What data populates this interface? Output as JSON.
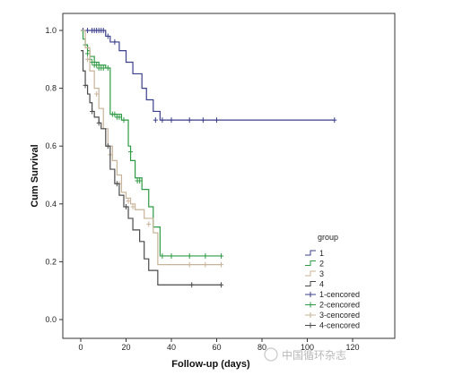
{
  "chart_data": {
    "type": "line",
    "subtype": "kaplan-meier",
    "xlabel": "Follow-up (days)",
    "ylabel": "Cum Survival",
    "xlim": [
      0,
      120
    ],
    "ylim": [
      0,
      1.0
    ],
    "x_ticks": [
      "0",
      "20",
      "40",
      "60",
      "80",
      "100",
      "120"
    ],
    "y_ticks": [
      "0.0",
      "0.2",
      "0.4",
      "0.6",
      "0.8",
      "1.0"
    ],
    "grid": false,
    "legend": {
      "title": "group",
      "placement": "right",
      "step_entries": [
        "1",
        "2",
        "3",
        "4"
      ],
      "censored_entries": [
        "1-cencored",
        "2-cencored",
        "3-cencored",
        "4-cencored"
      ]
    },
    "series": [
      {
        "name": "1",
        "color": "#3b3f8c",
        "steps": [
          [
            0,
            1.0
          ],
          [
            11,
            0.98
          ],
          [
            13,
            0.96
          ],
          [
            17,
            0.93
          ],
          [
            20,
            0.89
          ],
          [
            23,
            0.85
          ],
          [
            27,
            0.8
          ],
          [
            29,
            0.76
          ],
          [
            32,
            0.72
          ],
          [
            35,
            0.69
          ],
          [
            112,
            0.69
          ]
        ],
        "censored": [
          [
            1,
            1.0
          ],
          [
            3,
            1.0
          ],
          [
            5,
            1.0
          ],
          [
            6,
            1.0
          ],
          [
            7,
            1.0
          ],
          [
            8,
            1.0
          ],
          [
            9,
            1.0
          ],
          [
            10,
            1.0
          ],
          [
            12,
            0.98
          ],
          [
            15,
            0.96
          ],
          [
            33,
            0.69
          ],
          [
            36,
            0.69
          ],
          [
            40,
            0.69
          ],
          [
            48,
            0.69
          ],
          [
            54,
            0.69
          ],
          [
            60,
            0.69
          ],
          [
            112,
            0.69
          ]
        ]
      },
      {
        "name": "2",
        "color": "#2e9a43",
        "steps": [
          [
            0,
            1.0
          ],
          [
            1,
            0.97
          ],
          [
            2,
            0.95
          ],
          [
            3,
            0.93
          ],
          [
            4,
            0.91
          ],
          [
            6,
            0.89
          ],
          [
            8,
            0.88
          ],
          [
            11,
            0.87
          ],
          [
            13,
            0.71
          ],
          [
            18,
            0.69
          ],
          [
            21,
            0.6
          ],
          [
            22,
            0.55
          ],
          [
            24,
            0.49
          ],
          [
            27,
            0.45
          ],
          [
            30,
            0.39
          ],
          [
            32,
            0.32
          ],
          [
            35,
            0.22
          ],
          [
            62,
            0.22
          ]
        ],
        "censored": [
          [
            2,
            0.95
          ],
          [
            3,
            0.92
          ],
          [
            4,
            0.9
          ],
          [
            5,
            0.89
          ],
          [
            6,
            0.88
          ],
          [
            7,
            0.88
          ],
          [
            8,
            0.87
          ],
          [
            9,
            0.87
          ],
          [
            10,
            0.87
          ],
          [
            12,
            0.87
          ],
          [
            14,
            0.71
          ],
          [
            15,
            0.71
          ],
          [
            16,
            0.7
          ],
          [
            17,
            0.7
          ],
          [
            19,
            0.69
          ],
          [
            22,
            0.58
          ],
          [
            25,
            0.48
          ],
          [
            26,
            0.48
          ],
          [
            36,
            0.22
          ],
          [
            40,
            0.22
          ],
          [
            48,
            0.22
          ],
          [
            55,
            0.22
          ],
          [
            62,
            0.22
          ]
        ]
      },
      {
        "name": "3",
        "color": "#c8b49a",
        "steps": [
          [
            0,
            1.0
          ],
          [
            2,
            0.94
          ],
          [
            4,
            0.86
          ],
          [
            6,
            0.8
          ],
          [
            8,
            0.73
          ],
          [
            10,
            0.66
          ],
          [
            12,
            0.6
          ],
          [
            14,
            0.55
          ],
          [
            16,
            0.5
          ],
          [
            18,
            0.44
          ],
          [
            20,
            0.42
          ],
          [
            22,
            0.4
          ],
          [
            24,
            0.38
          ],
          [
            28,
            0.35
          ],
          [
            32,
            0.3
          ],
          [
            34,
            0.19
          ],
          [
            62,
            0.19
          ]
        ],
        "censored": [
          [
            3,
            0.9
          ],
          [
            7,
            0.78
          ],
          [
            13,
            0.57
          ],
          [
            17,
            0.47
          ],
          [
            21,
            0.41
          ],
          [
            23,
            0.39
          ],
          [
            30,
            0.33
          ],
          [
            48,
            0.19
          ],
          [
            55,
            0.19
          ],
          [
            62,
            0.19
          ]
        ]
      },
      {
        "name": "4",
        "color": "#4a4a4a",
        "steps": [
          [
            0,
            0.93
          ],
          [
            1,
            0.86
          ],
          [
            2,
            0.81
          ],
          [
            3,
            0.78
          ],
          [
            4,
            0.75
          ],
          [
            5,
            0.72
          ],
          [
            6,
            0.7
          ],
          [
            8,
            0.68
          ],
          [
            9,
            0.66
          ],
          [
            11,
            0.6
          ],
          [
            13,
            0.52
          ],
          [
            15,
            0.47
          ],
          [
            17,
            0.43
          ],
          [
            19,
            0.39
          ],
          [
            21,
            0.35
          ],
          [
            23,
            0.31
          ],
          [
            26,
            0.27
          ],
          [
            28,
            0.21
          ],
          [
            30,
            0.17
          ],
          [
            34,
            0.12
          ],
          [
            62,
            0.12
          ]
        ],
        "censored": [
          [
            2,
            0.81
          ],
          [
            5,
            0.72
          ],
          [
            8,
            0.68
          ],
          [
            12,
            0.6
          ],
          [
            16,
            0.47
          ],
          [
            20,
            0.39
          ],
          [
            49,
            0.12
          ],
          [
            62,
            0.12
          ]
        ]
      }
    ]
  },
  "watermark": {
    "text": "中国循环杂志"
  }
}
